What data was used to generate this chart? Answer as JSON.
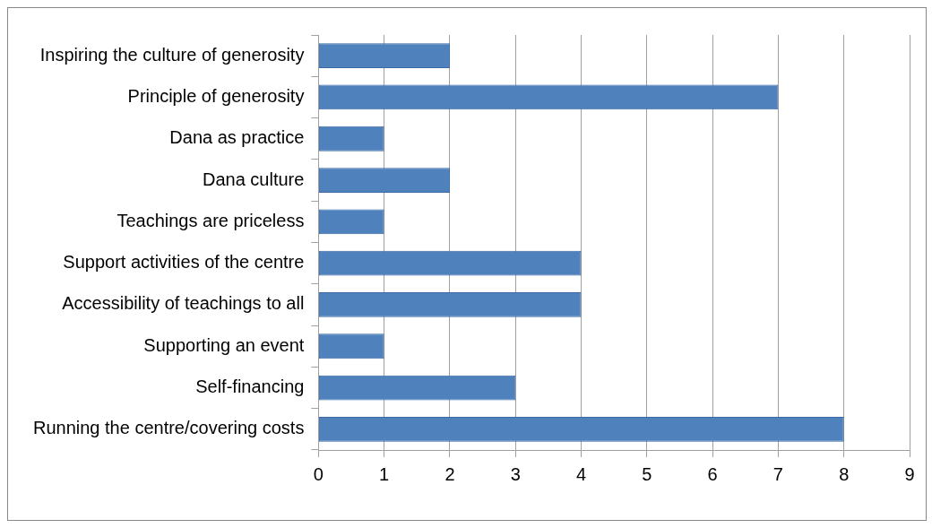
{
  "chart_data": {
    "type": "bar",
    "orientation": "horizontal",
    "categories": [
      "Inspiring the culture of generosity",
      "Principle of generosity",
      "Dana as practice",
      "Dana culture",
      "Teachings are priceless",
      "Support activities of the centre",
      "Accessibility of teachings to all",
      "Supporting an event",
      "Self-financing",
      "Running the centre/covering costs"
    ],
    "values": [
      2,
      7,
      1,
      2,
      1,
      4,
      4,
      1,
      3,
      8
    ],
    "color": "#4f81bd",
    "xlim": [
      0,
      9
    ],
    "xticks": [
      0,
      1,
      2,
      3,
      4,
      5,
      6,
      7,
      8,
      9
    ],
    "grid": "x",
    "legend": false
  }
}
